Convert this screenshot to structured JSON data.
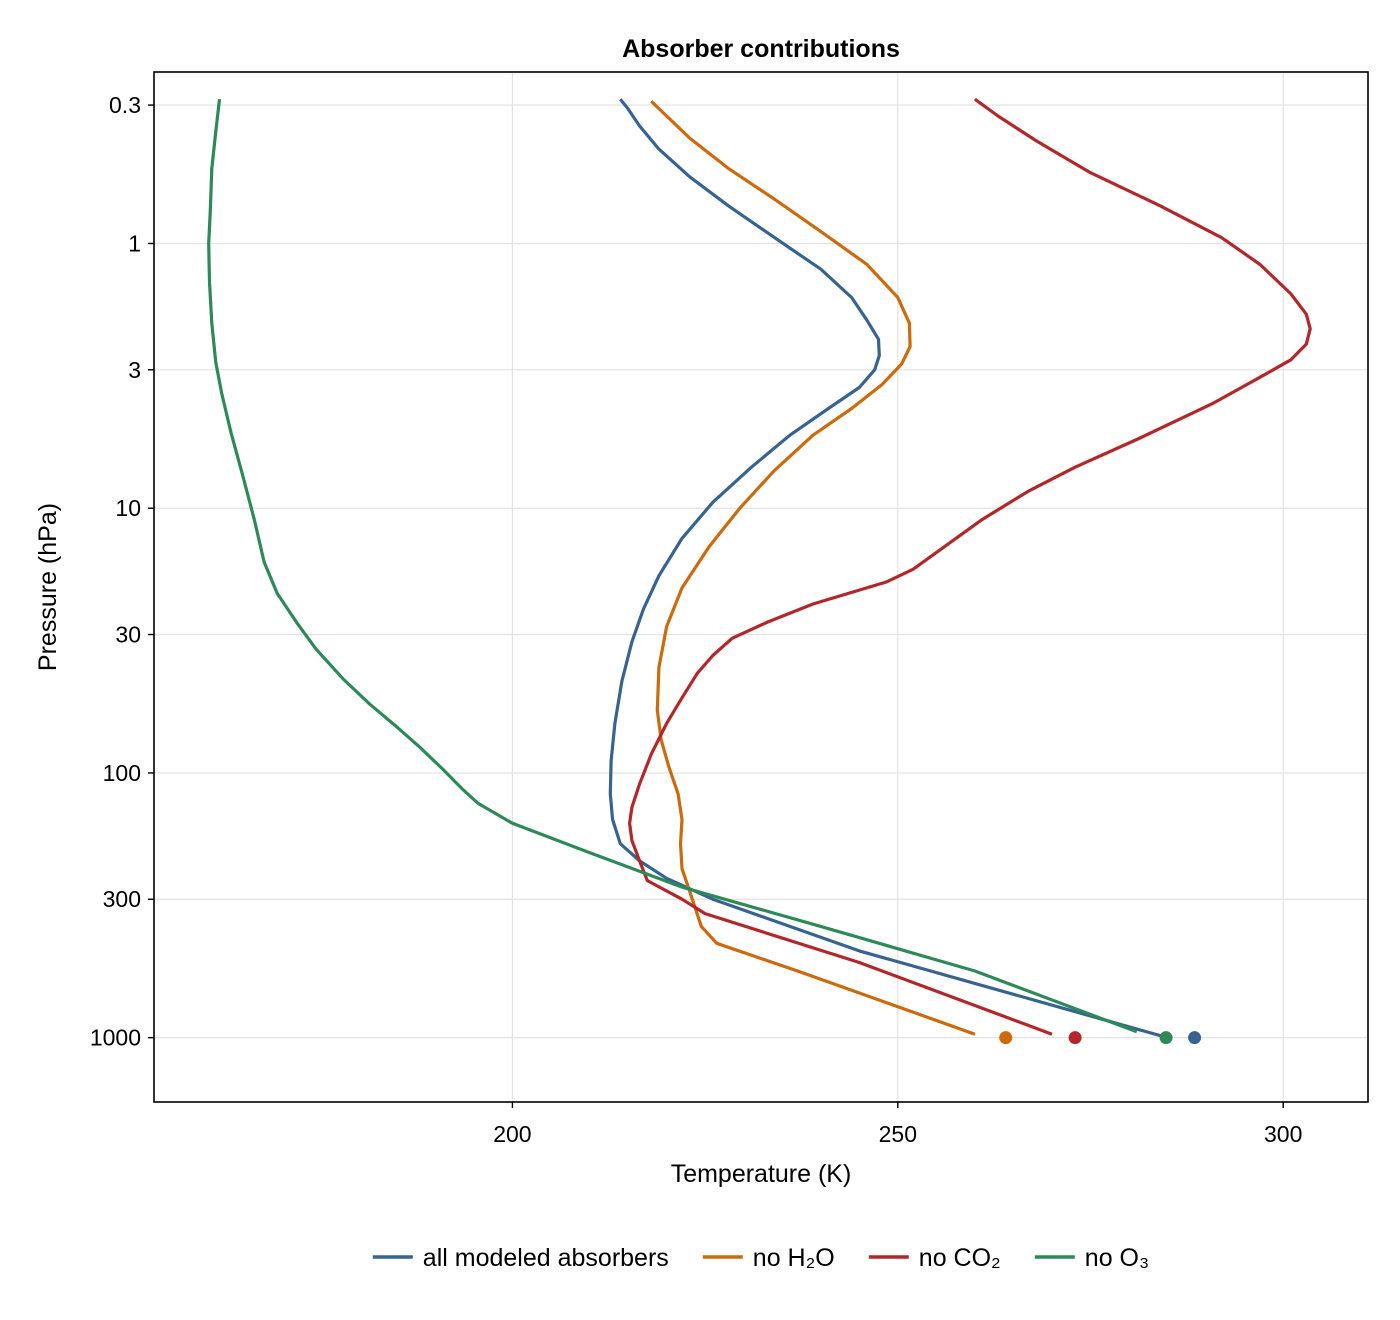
{
  "chart_data": {
    "type": "line",
    "title": "Absorber contributions",
    "xlabel": "Temperature (K)",
    "ylabel": "Pressure (hPa)",
    "xlim": [
      153.5,
      311
    ],
    "ylim": [
      1750,
      0.225
    ],
    "yscale": "log",
    "yreversed": true,
    "xticks": [
      200,
      250,
      300
    ],
    "yticks": [
      0.3,
      1,
      3,
      10,
      30,
      100,
      300,
      1000
    ],
    "xtick_labels": [
      "200",
      "250",
      "300"
    ],
    "ytick_labels": [
      "0.3",
      "1",
      "3",
      "10",
      "30",
      "100",
      "300",
      "1000"
    ],
    "grid": true,
    "legend": {
      "position": "bottom",
      "orientation": "horizontal"
    },
    "series": [
      {
        "name": "all modeled absorbers",
        "color": "#376391",
        "points": [
          [
            214,
            0.285
          ],
          [
            215,
            0.31
          ],
          [
            216.5,
            0.36
          ],
          [
            219,
            0.44
          ],
          [
            223,
            0.56
          ],
          [
            228,
            0.72
          ],
          [
            234,
            0.95
          ],
          [
            240,
            1.25
          ],
          [
            244,
            1.6
          ],
          [
            246,
            1.95
          ],
          [
            247.5,
            2.3
          ],
          [
            247.6,
            2.65
          ],
          [
            247,
            3.0
          ],
          [
            245,
            3.5
          ],
          [
            241,
            4.2
          ],
          [
            236,
            5.3
          ],
          [
            231,
            7.0
          ],
          [
            226,
            9.5
          ],
          [
            222,
            13
          ],
          [
            219,
            18
          ],
          [
            217,
            24
          ],
          [
            215.5,
            32
          ],
          [
            214.2,
            45
          ],
          [
            213.3,
            65
          ],
          [
            212.8,
            90
          ],
          [
            212.7,
            120
          ],
          [
            213,
            150
          ],
          [
            214,
            185
          ],
          [
            216.5,
            215
          ],
          [
            220,
            250
          ],
          [
            226,
            300
          ],
          [
            245,
            470
          ],
          [
            285,
            1000
          ]
        ],
        "surface": {
          "x": 288.5,
          "y": 1000
        }
      },
      {
        "name": "no H₂O",
        "color": "#cc6a0d",
        "points": [
          [
            218,
            0.29
          ],
          [
            220,
            0.33
          ],
          [
            223,
            0.4
          ],
          [
            228,
            0.52
          ],
          [
            234,
            0.68
          ],
          [
            240,
            0.9
          ],
          [
            246,
            1.2
          ],
          [
            250,
            1.6
          ],
          [
            251.5,
            2.0
          ],
          [
            251.6,
            2.45
          ],
          [
            250.5,
            2.85
          ],
          [
            248,
            3.4
          ],
          [
            244,
            4.2
          ],
          [
            239,
            5.3
          ],
          [
            234,
            7.2
          ],
          [
            229.5,
            10
          ],
          [
            225.5,
            14
          ],
          [
            222,
            20
          ],
          [
            220,
            28
          ],
          [
            219,
            40
          ],
          [
            218.8,
            58
          ],
          [
            219.3,
            75
          ],
          [
            220.3,
            95
          ],
          [
            221.5,
            120
          ],
          [
            222,
            150
          ],
          [
            221.8,
            185
          ],
          [
            222,
            230
          ],
          [
            223,
            280
          ],
          [
            224.5,
            380
          ],
          [
            226.5,
            440
          ],
          [
            237,
            560
          ],
          [
            260,
            970
          ]
        ],
        "surface": {
          "x": 264,
          "y": 1000
        }
      },
      {
        "name": "no CO₂",
        "color": "#b22729",
        "points": [
          [
            260,
            0.285
          ],
          [
            263,
            0.33
          ],
          [
            268,
            0.41
          ],
          [
            275,
            0.54
          ],
          [
            284,
            0.72
          ],
          [
            292,
            0.95
          ],
          [
            297,
            1.2
          ],
          [
            301,
            1.55
          ],
          [
            303,
            1.85
          ],
          [
            303.5,
            2.1
          ],
          [
            303,
            2.4
          ],
          [
            301,
            2.75
          ],
          [
            297,
            3.2
          ],
          [
            291,
            4.0
          ],
          [
            281,
            5.5
          ],
          [
            273,
            7.0
          ],
          [
            267,
            8.6
          ],
          [
            261,
            11
          ],
          [
            256,
            14
          ],
          [
            252,
            17
          ],
          [
            248.5,
            19
          ],
          [
            239,
            23
          ],
          [
            233,
            27
          ],
          [
            228.5,
            31
          ],
          [
            226,
            36
          ],
          [
            224,
            42
          ],
          [
            222,
            52
          ],
          [
            220,
            65
          ],
          [
            218,
            85
          ],
          [
            216.5,
            110
          ],
          [
            215.5,
            135
          ],
          [
            215.2,
            155
          ],
          [
            215.5,
            180
          ],
          [
            216.5,
            215
          ],
          [
            217.5,
            255
          ],
          [
            222,
            300
          ],
          [
            225,
            340
          ],
          [
            245,
            520
          ],
          [
            270,
            970
          ]
        ],
        "surface": {
          "x": 273,
          "y": 1000
        }
      },
      {
        "name": "no O₃",
        "color": "#2e8959",
        "points": [
          [
            162,
            0.285
          ],
          [
            161.5,
            0.38
          ],
          [
            161,
            0.52
          ],
          [
            160.8,
            0.75
          ],
          [
            160.6,
            1.0
          ],
          [
            160.7,
            1.4
          ],
          [
            161,
            2.0
          ],
          [
            161.5,
            2.8
          ],
          [
            162.3,
            3.7
          ],
          [
            163.5,
            5.2
          ],
          [
            165,
            7.5
          ],
          [
            166.5,
            11
          ],
          [
            167.8,
            16
          ],
          [
            169.5,
            21
          ],
          [
            172,
            27
          ],
          [
            174.5,
            34
          ],
          [
            178,
            44
          ],
          [
            181.5,
            55
          ],
          [
            185,
            67
          ],
          [
            188,
            80
          ],
          [
            191,
            97
          ],
          [
            193.5,
            115
          ],
          [
            195.5,
            130
          ],
          [
            200,
            155
          ],
          [
            210,
            200
          ],
          [
            222,
            270
          ],
          [
            240,
            380
          ],
          [
            260,
            560
          ],
          [
            281,
            950
          ]
        ],
        "surface": {
          "x": 284.8,
          "y": 1000
        }
      }
    ]
  }
}
